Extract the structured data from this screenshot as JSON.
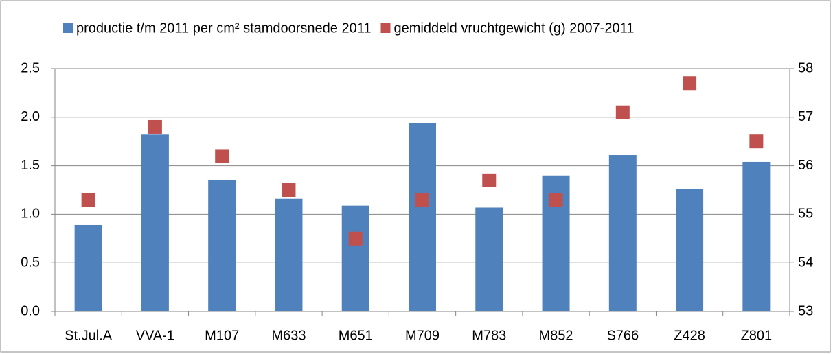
{
  "chart_data": {
    "type": "bar",
    "categories": [
      "St.Jul.A",
      "VVA-1",
      "M107",
      "M633",
      "M651",
      "M709",
      "M783",
      "M852",
      "S766",
      "Z428",
      "Z801"
    ],
    "series": [
      {
        "name": "productie t/m 2011 per cm² stamdoorsnede 2011",
        "color": "#4f81bd",
        "type": "bar",
        "values": [
          0.89,
          1.82,
          1.35,
          1.16,
          1.09,
          1.94,
          1.07,
          1.4,
          1.61,
          1.26,
          1.54
        ]
      },
      {
        "name": "gemiddeld vruchtgewicht (g) 2007-2011",
        "color": "#c0504d",
        "type": "scatter",
        "axis": "y2",
        "values": [
          55.3,
          56.8,
          56.2,
          55.5,
          54.5,
          55.3,
          55.7,
          55.3,
          57.1,
          57.7,
          56.5
        ]
      }
    ],
    "ylim": [
      0,
      2.5
    ],
    "yticks": [
      {
        "value": 0,
        "label": "0.0"
      },
      0.5,
      {
        "value": 1,
        "label": "1.0"
      },
      1.5,
      {
        "value": 2,
        "label": "2.0"
      },
      2.5
    ],
    "y2lim": [
      53,
      58
    ],
    "y2ticks": [
      53,
      54,
      55,
      56,
      57,
      58
    ],
    "grid": true,
    "legend": "top"
  }
}
